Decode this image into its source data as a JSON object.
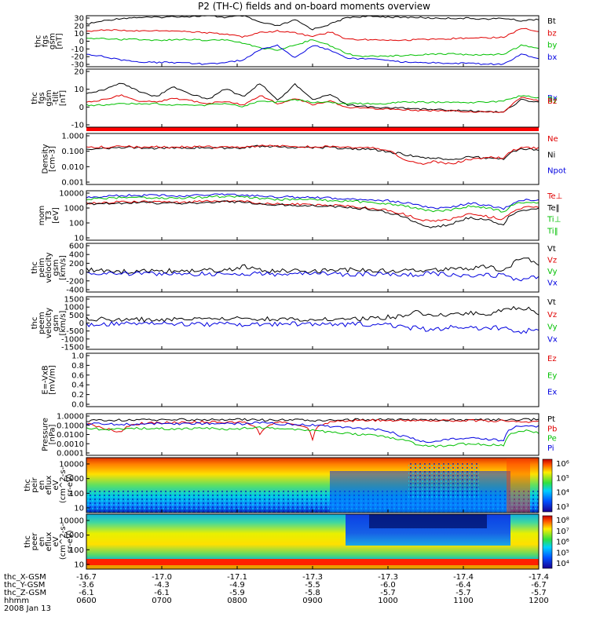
{
  "title": "P2 (TH-C) fields and on-board moments overview",
  "chart_data": [
    {
      "panel": "fgs_gsm",
      "type": "line",
      "ylabel": [
        "thc",
        "fgs",
        "gsm",
        "[nT]"
      ],
      "yticks": [
        "30",
        "20",
        "10",
        "0",
        "-10",
        "-20",
        "-30"
      ],
      "ylim": [
        -30,
        30
      ],
      "legend": [
        {
          "name": "Bt",
          "color": "#000000"
        },
        {
          "name": "bz",
          "color": "#e00000"
        },
        {
          "name": "by",
          "color": "#00c000"
        },
        {
          "name": "bx",
          "color": "#0000e0"
        }
      ],
      "series": [
        {
          "name": "Bt",
          "color": "#000000",
          "values": [
            20,
            24,
            27,
            28,
            28,
            29,
            29,
            30,
            28,
            30,
            22,
            18,
            25,
            14,
            20,
            28,
            29,
            29,
            28,
            28,
            27,
            27,
            27,
            26,
            27,
            24,
            26
          ]
        },
        {
          "name": "bz",
          "color": "#e00000",
          "values": [
            12,
            13,
            13,
            12,
            12,
            12,
            11,
            10,
            8,
            5,
            10,
            12,
            10,
            5,
            11,
            2,
            2,
            2,
            1,
            2,
            2,
            3,
            4,
            4,
            5,
            15,
            12
          ]
        },
        {
          "name": "by",
          "color": "#00c000",
          "values": [
            3,
            3,
            2,
            2,
            1,
            2,
            2,
            1,
            2,
            -2,
            -8,
            -10,
            -5,
            2,
            -5,
            -15,
            -18,
            -18,
            -17,
            -16,
            -15,
            -15,
            -16,
            -16,
            -15,
            -5,
            -8
          ]
        },
        {
          "name": "bx",
          "color": "#0000e0",
          "values": [
            -15,
            -18,
            -22,
            -24,
            -25,
            -25,
            -26,
            -27,
            -25,
            -22,
            -10,
            -5,
            -20,
            -5,
            -10,
            -20,
            -21,
            -22,
            -24,
            -25,
            -25,
            -26,
            -26,
            -27,
            -27,
            -15,
            -20
          ]
        }
      ]
    },
    {
      "panel": "fgs_gse_tilt",
      "type": "line",
      "ylabel": [
        "thc",
        "fgs",
        "gsm",
        "-tilt",
        "[nT]"
      ],
      "yticks": [
        "20",
        "10",
        "0",
        "-10"
      ],
      "ylim": [
        -14,
        28
      ],
      "legend": [
        {
          "name": "Bx",
          "color": "#0000e0"
        },
        {
          "name": "By",
          "color": "#00c000"
        },
        {
          "name": "Bz",
          "color": "#e00000"
        }
      ],
      "series": [
        {
          "name": "Bt",
          "color": "#000000",
          "values": [
            10,
            13,
            18,
            12,
            8,
            15,
            10,
            6,
            14,
            8,
            18,
            5,
            17,
            6,
            10,
            2,
            1,
            0,
            0,
            -1,
            -1,
            -2,
            -2,
            -3,
            -3,
            6,
            4
          ]
        },
        {
          "name": "Bz",
          "color": "#e00000",
          "values": [
            4,
            6,
            9,
            5,
            4,
            7,
            5,
            3,
            5,
            2,
            9,
            3,
            7,
            2,
            5,
            0,
            0,
            -1,
            -1,
            -2,
            -2,
            -2,
            -3,
            -3,
            -3,
            8,
            5
          ]
        },
        {
          "name": "By",
          "color": "#00c000",
          "values": [
            2,
            2,
            3,
            3,
            3,
            2,
            2,
            2,
            3,
            1,
            5,
            4,
            6,
            4,
            4,
            3,
            3,
            3,
            4,
            4,
            4,
            4,
            4,
            4,
            5,
            9,
            7
          ]
        }
      ]
    },
    {
      "panel": "density",
      "type": "line",
      "ylabel": [
        "Density",
        "[cm-3]"
      ],
      "yticks": [
        "1.000",
        "0.100",
        "0.010",
        "0.001"
      ],
      "ylim": [
        0.001,
        2
      ],
      "yscale": "log",
      "legend": [
        {
          "name": "Ne",
          "color": "#e00000"
        },
        {
          "name": "Ni",
          "color": "#000000"
        },
        {
          "name": "Npot",
          "color": "#0000e0"
        }
      ],
      "series": [
        {
          "name": "Ni",
          "color": "#000000",
          "values": [
            0.2,
            0.22,
            0.25,
            0.24,
            0.22,
            0.23,
            0.25,
            0.24,
            0.22,
            0.24,
            0.3,
            0.28,
            0.26,
            0.25,
            0.24,
            0.22,
            0.2,
            0.15,
            0.1,
            0.06,
            0.05,
            0.04,
            0.06,
            0.05,
            0.04,
            0.2,
            0.18
          ]
        },
        {
          "name": "Ne",
          "color": "#e00000",
          "values": [
            0.25,
            0.26,
            0.28,
            0.27,
            0.26,
            0.27,
            0.28,
            0.27,
            0.26,
            0.27,
            0.3,
            0.3,
            0.29,
            0.28,
            0.27,
            0.26,
            0.25,
            0.2,
            0.05,
            0.02,
            0.03,
            0.02,
            0.04,
            0.06,
            0.05,
            0.25,
            0.22
          ]
        }
      ]
    },
    {
      "panel": "temperature",
      "type": "line",
      "ylabel": [
        "mom",
        "T3",
        "[eV]"
      ],
      "yticks": [
        "10000",
        "1000",
        "100",
        "10"
      ],
      "ylim": [
        10,
        12000
      ],
      "yscale": "log",
      "legend": [
        {
          "name": "Te⊥",
          "color": "#e00000"
        },
        {
          "name": "Te‖",
          "color": "#000000"
        },
        {
          "name": "Ti⊥",
          "color": "#00c000"
        },
        {
          "name": "Ti‖",
          "color": "#00c000"
        }
      ],
      "series": [
        {
          "name": "Ti",
          "color": "#0000e0",
          "values": [
            5000,
            5500,
            6000,
            6200,
            6000,
            5800,
            6000,
            6500,
            7000,
            6500,
            5500,
            5000,
            4800,
            4500,
            4200,
            3800,
            3500,
            3000,
            2500,
            1500,
            900,
            1200,
            2000,
            1500,
            900,
            3000,
            3500
          ]
        },
        {
          "name": "Ti⊥",
          "color": "#00c000",
          "values": [
            3500,
            4000,
            4500,
            4600,
            4500,
            4300,
            4500,
            5000,
            5500,
            5000,
            4000,
            3500,
            3400,
            3200,
            3000,
            2700,
            2400,
            2000,
            1500,
            900,
            600,
            800,
            1300,
            1000,
            600,
            2200,
            2400
          ]
        },
        {
          "name": "Te⊥",
          "color": "#e00000",
          "values": [
            2000,
            2200,
            2400,
            2500,
            2400,
            2300,
            2400,
            2600,
            2800,
            2600,
            2000,
            1800,
            1700,
            1600,
            1500,
            1300,
            1100,
            800,
            500,
            200,
            150,
            200,
            400,
            300,
            200,
            1000,
            1200
          ]
        },
        {
          "name": "Te‖",
          "color": "#000000",
          "values": [
            1700,
            1900,
            2100,
            2200,
            2100,
            2000,
            2100,
            2300,
            2500,
            2300,
            1800,
            1600,
            1500,
            1400,
            1300,
            1100,
            900,
            600,
            350,
            100,
            60,
            100,
            250,
            200,
            80,
            800,
            900
          ]
        }
      ]
    },
    {
      "panel": "peim_velocity",
      "type": "line",
      "ylabel": [
        "thc",
        "peim",
        "velocity",
        "gsm",
        "[km/s]"
      ],
      "yticks": [
        "600",
        "400",
        "200",
        "0",
        "-200",
        "-400"
      ],
      "ylim": [
        -400,
        650
      ],
      "legend": [
        {
          "name": "Vt",
          "color": "#000000"
        },
        {
          "name": "Vz",
          "color": "#e00000"
        },
        {
          "name": "Vy",
          "color": "#00c000"
        },
        {
          "name": "Vx",
          "color": "#0000e0"
        }
      ],
      "series": [
        {
          "name": "Vt",
          "color": "#000000",
          "values": [
            100,
            60,
            40,
            50,
            40,
            60,
            50,
            80,
            60,
            150,
            60,
            50,
            60,
            50,
            60,
            80,
            60,
            60,
            70,
            60,
            80,
            100,
            120,
            150,
            80,
            350,
            200
          ]
        },
        {
          "name": "Vx",
          "color": "#0000e0",
          "values": [
            -20,
            -10,
            0,
            -10,
            0,
            -10,
            0,
            -20,
            0,
            -30,
            0,
            -10,
            0,
            10,
            0,
            -20,
            0,
            -10,
            -30,
            -20,
            0,
            -50,
            -30,
            -40,
            -30,
            -150,
            -50
          ]
        }
      ]
    },
    {
      "panel": "peem_velocity",
      "type": "line",
      "ylabel": [
        "thc",
        "peem",
        "velocity",
        "gsm",
        "[km/s]"
      ],
      "yticks": [
        "1500",
        "1000",
        "500",
        "0",
        "-500",
        "-1000",
        "-1500"
      ],
      "ylim": [
        -1500,
        1500
      ],
      "legend": [
        {
          "name": "Vt",
          "color": "#000000"
        },
        {
          "name": "Vz",
          "color": "#e00000"
        },
        {
          "name": "Vy",
          "color": "#00c000"
        },
        {
          "name": "Vx",
          "color": "#0000e0"
        }
      ],
      "series": [
        {
          "name": "Vt",
          "color": "#000000",
          "values": [
            300,
            200,
            180,
            200,
            180,
            200,
            220,
            250,
            200,
            350,
            250,
            200,
            180,
            200,
            250,
            200,
            220,
            300,
            400,
            600,
            500,
            400,
            600,
            500,
            700,
            900,
            600
          ]
        },
        {
          "name": "Vx",
          "color": "#0000e0",
          "values": [
            -100,
            -50,
            -30,
            -60,
            -40,
            -50,
            -30,
            -80,
            -50,
            -150,
            -80,
            -40,
            -50,
            -40,
            -60,
            -80,
            -60,
            -100,
            -200,
            -300,
            -400,
            -200,
            -300,
            -250,
            -300,
            -500,
            -300
          ]
        }
      ]
    },
    {
      "panel": "efield",
      "type": "line",
      "ylabel": [
        "E=-VxB",
        "[mV/m]"
      ],
      "yticks": [
        "1.0",
        "0.8",
        "0.6",
        "0.4",
        "0.2",
        "0.0"
      ],
      "ylim": [
        0,
        1
      ],
      "legend": [
        {
          "name": "Ez",
          "color": "#e00000"
        },
        {
          "name": "Ey",
          "color": "#00c000"
        },
        {
          "name": "Ex",
          "color": "#0000e0"
        }
      ],
      "series": []
    },
    {
      "panel": "pressure",
      "type": "line",
      "ylabel": [
        "Pressure",
        "[nPa]"
      ],
      "yticks": [
        "1.0000",
        "0.1000",
        "0.0100",
        "0.0010",
        "0.0001"
      ],
      "ylim": [
        0.0001,
        1.5
      ],
      "yscale": "log",
      "legend": [
        {
          "name": "Pt",
          "color": "#000000"
        },
        {
          "name": "Pb",
          "color": "#e00000"
        },
        {
          "name": "Pe",
          "color": "#00c000"
        },
        {
          "name": "Pi",
          "color": "#0000e0"
        }
      ],
      "series": [
        {
          "name": "Pt",
          "color": "#000000",
          "values": [
            0.3,
            0.32,
            0.35,
            0.36,
            0.37,
            0.38,
            0.38,
            0.39,
            0.38,
            0.39,
            0.35,
            0.33,
            0.36,
            0.3,
            0.34,
            0.36,
            0.37,
            0.37,
            0.37,
            0.36,
            0.36,
            0.36,
            0.36,
            0.35,
            0.36,
            0.4,
            0.38
          ]
        },
        {
          "name": "Pb",
          "color": "#e00000",
          "values": [
            0.15,
            0.05,
            0.02,
            0.15,
            0.18,
            0.2,
            0.2,
            0.22,
            0.2,
            0.22,
            0.008,
            0.2,
            0.15,
            0.003,
            0.2,
            0.3,
            0.32,
            0.32,
            0.31,
            0.31,
            0.3,
            0.3,
            0.3,
            0.29,
            0.3,
            0.2,
            0.25
          ]
        },
        {
          "name": "Pi",
          "color": "#0000e0",
          "values": [
            0.15,
            0.14,
            0.13,
            0.14,
            0.15,
            0.14,
            0.15,
            0.16,
            0.15,
            0.15,
            0.2,
            0.15,
            0.12,
            0.1,
            0.08,
            0.06,
            0.05,
            0.03,
            0.01,
            0.003,
            0.002,
            0.004,
            0.005,
            0.004,
            0.003,
            0.1,
            0.08
          ]
        },
        {
          "name": "Pe",
          "color": "#00c000",
          "values": [
            0.05,
            0.04,
            0.04,
            0.05,
            0.05,
            0.04,
            0.05,
            0.05,
            0.04,
            0.05,
            0.06,
            0.05,
            0.04,
            0.03,
            0.02,
            0.015,
            0.012,
            0.008,
            0.004,
            0.001,
            0.0008,
            0.001,
            0.0015,
            0.0012,
            0.001,
            0.03,
            0.02
          ]
        }
      ]
    },
    {
      "panel": "peir_spectrogram",
      "type": "heatmap",
      "ylabel": [
        "thc",
        "peir",
        "en",
        "eflux",
        "eV",
        "(cm^2-s-",
        "sr-eV)"
      ],
      "yticks": [
        "10000",
        "1000",
        "100",
        "10"
      ],
      "colorbar_ticks": [
        "10⁶",
        "10⁵",
        "10⁴",
        "10³"
      ]
    },
    {
      "panel": "peer_spectrogram",
      "type": "heatmap",
      "ylabel": [
        "thc",
        "peer",
        "en",
        "eflux",
        "eV",
        "(cm^2-s-",
        "sr-eV)"
      ],
      "yticks": [
        "10000",
        "1000",
        "100",
        "10"
      ],
      "colorbar_ticks": [
        "10⁸",
        "10⁷",
        "10⁶",
        "10⁵",
        "10⁴"
      ]
    }
  ],
  "orbit": {
    "rows": [
      {
        "label": "thc_X-GSM",
        "values": [
          "-16.7",
          "-17.0",
          "-17.1",
          "-17.3",
          "-17.3",
          "-17.4",
          "-17.4"
        ]
      },
      {
        "label": "thc_Y-GSM",
        "values": [
          "-3.6",
          "-4.3",
          "-4.9",
          "-5.5",
          "-6.0",
          "-6.4",
          "-6.7"
        ]
      },
      {
        "label": "thc_Z-GSM",
        "values": [
          "-6.1",
          "-6.1",
          "-5.9",
          "-5.8",
          "-5.7",
          "-5.7",
          "-5.7"
        ]
      },
      {
        "label": "hhmm",
        "values": [
          "0600",
          "0700",
          "0800",
          "0900",
          "1000",
          "1100",
          "1200"
        ]
      }
    ],
    "date": "2008 Jan 13"
  },
  "colors": {
    "black": "#000000",
    "red": "#e00000",
    "green": "#00c000",
    "blue": "#0000e0"
  }
}
